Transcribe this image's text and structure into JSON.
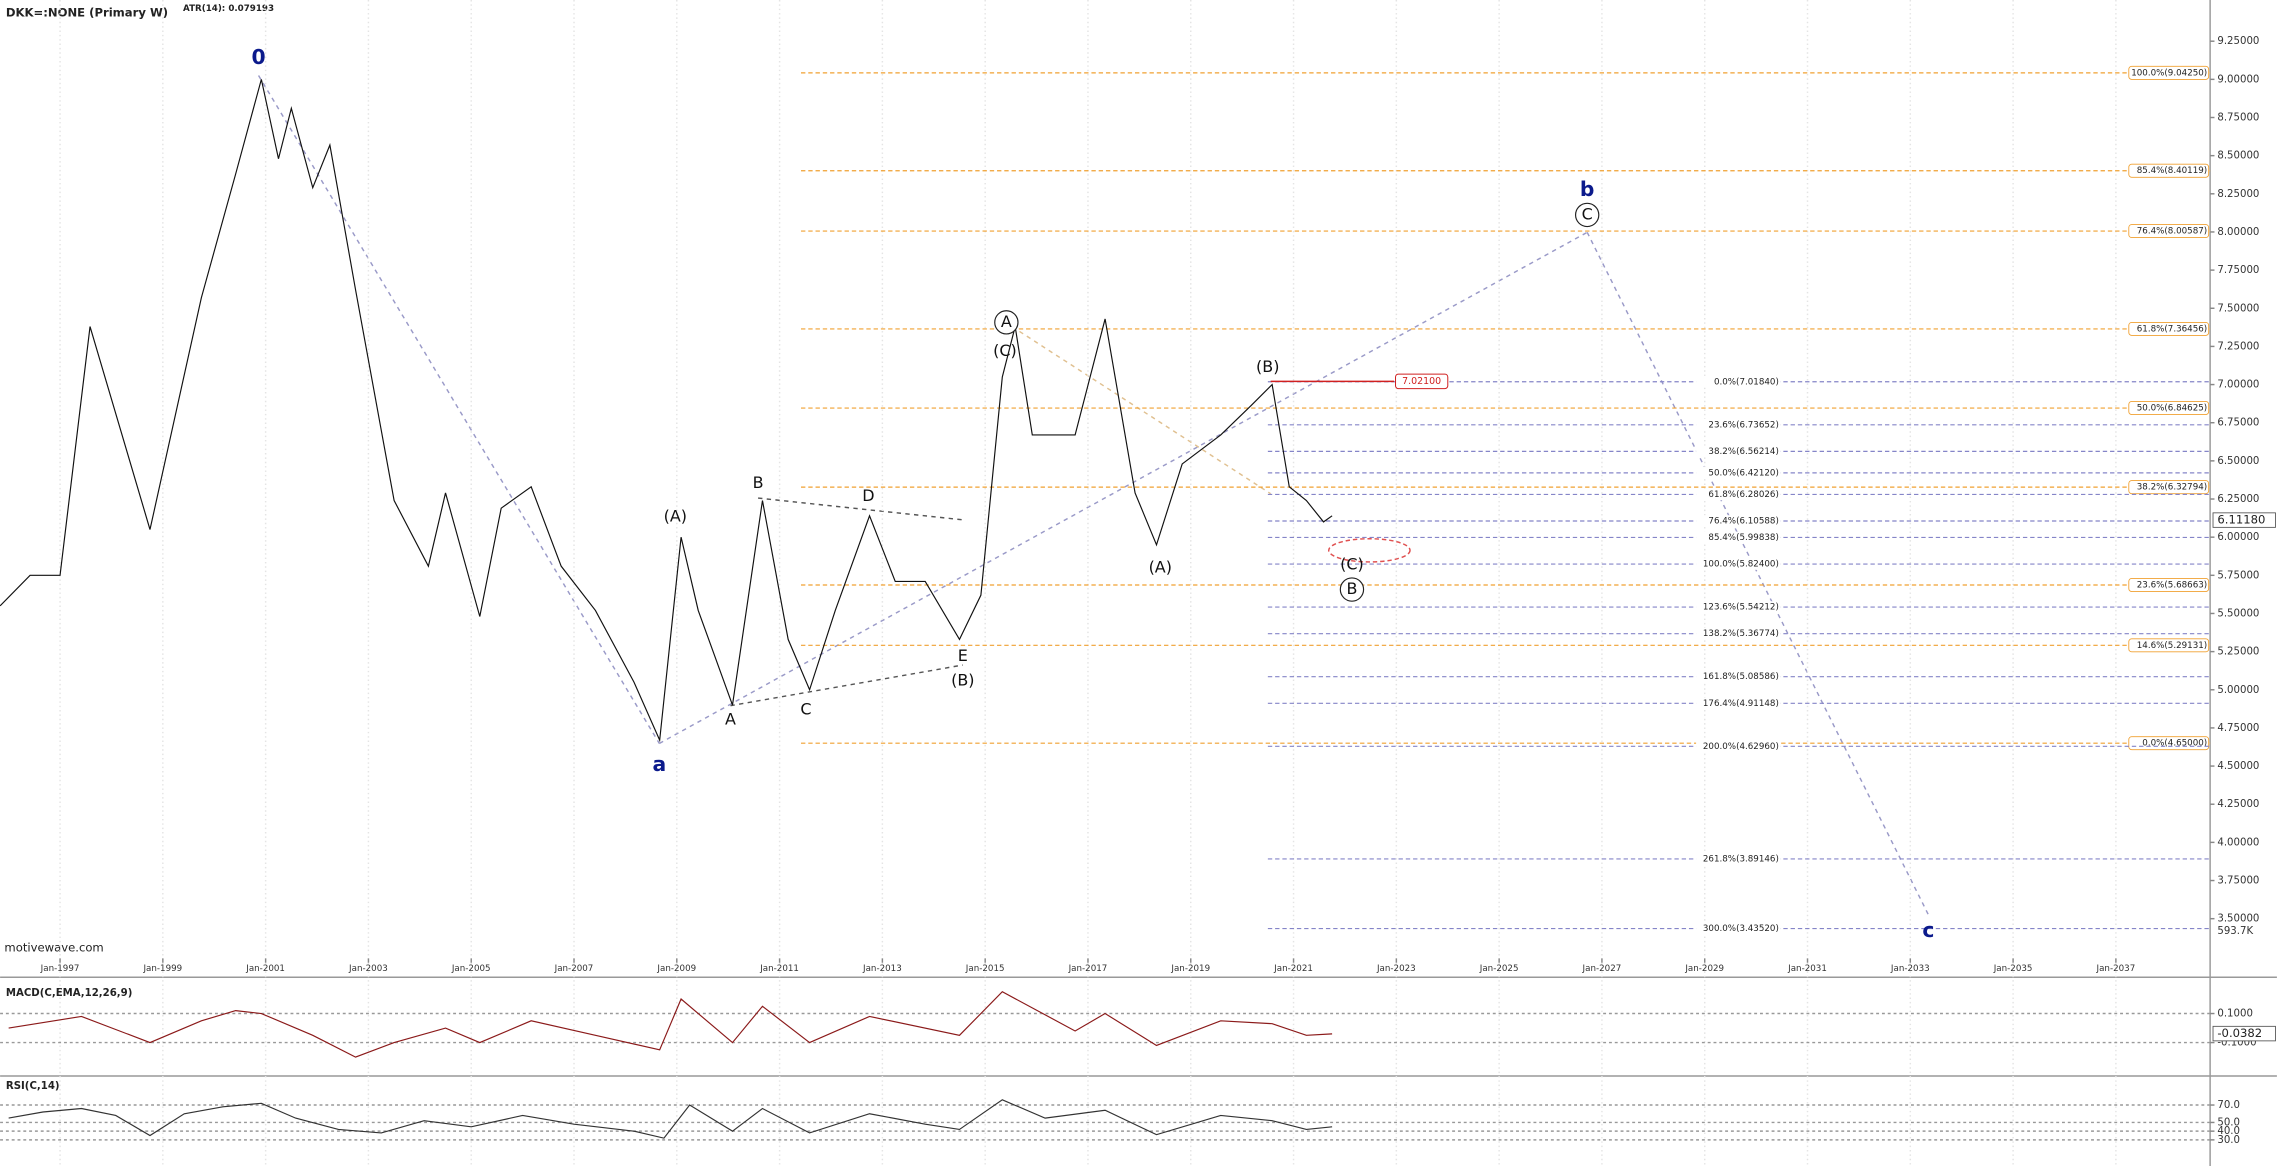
{
  "chart_data": [
    {
      "type": "line",
      "title": "DKK=:NONE (Primary W)",
      "subtitle": "ATR(14): 0.079193",
      "source": "motivewave.com",
      "xlim": [
        "1995-11",
        "2038-11"
      ],
      "ylim": [
        3.24,
        9.52
      ],
      "grid": true,
      "xticks": [
        {
          "value": "1997-01",
          "label": "Jan-1997"
        },
        {
          "value": "1999-01",
          "label": "Jan-1999"
        },
        {
          "value": "2001-01",
          "label": "Jan-2001"
        },
        {
          "value": "2003-01",
          "label": "Jan-2003"
        },
        {
          "value": "2005-01",
          "label": "Jan-2005"
        },
        {
          "value": "2007-01",
          "label": "Jan-2007"
        },
        {
          "value": "2009-01",
          "label": "Jan-2009"
        },
        {
          "value": "2011-01",
          "label": "Jan-2011"
        },
        {
          "value": "2013-01",
          "label": "Jan-2013"
        },
        {
          "value": "2015-01",
          "label": "Jan-2015"
        },
        {
          "value": "2017-01",
          "label": "Jan-2017"
        },
        {
          "value": "2019-01",
          "label": "Jan-2019"
        },
        {
          "value": "2021-01",
          "label": "Jan-2021"
        },
        {
          "value": "2023-01",
          "label": "Jan-2023"
        },
        {
          "value": "2025-01",
          "label": "Jan-2025"
        },
        {
          "value": "2027-01",
          "label": "Jan-2027"
        },
        {
          "value": "2029-01",
          "label": "Jan-2029"
        },
        {
          "value": "2031-01",
          "label": "Jan-2031"
        },
        {
          "value": "2033-01",
          "label": "Jan-2033"
        },
        {
          "value": "2035-01",
          "label": "Jan-2035"
        },
        {
          "value": "2037-01",
          "label": "Jan-2037"
        }
      ],
      "yticks": [
        {
          "value": 3.5,
          "label": "3.50000"
        },
        {
          "value": 3.75,
          "label": "3.75000"
        },
        {
          "value": 4,
          "label": "4.00000"
        },
        {
          "value": 4.25,
          "label": "4.25000"
        },
        {
          "value": 4.5,
          "label": "4.50000"
        },
        {
          "value": 4.75,
          "label": "4.75000"
        },
        {
          "value": 5,
          "label": "5.00000"
        },
        {
          "value": 5.25,
          "label": "5.25000"
        },
        {
          "value": 5.5,
          "label": "5.50000"
        },
        {
          "value": 5.75,
          "label": "5.75000"
        },
        {
          "value": 6,
          "label": "6.00000"
        },
        {
          "value": 6.25,
          "label": "6.25000"
        },
        {
          "value": 6.5,
          "label": "6.50000"
        },
        {
          "value": 6.75,
          "label": "6.75000"
        },
        {
          "value": 7,
          "label": "7.00000"
        },
        {
          "value": 7.25,
          "label": "7.25000"
        },
        {
          "value": 7.5,
          "label": "7.50000"
        },
        {
          "value": 7.75,
          "label": "7.75000"
        },
        {
          "value": 8,
          "label": "8.00000"
        },
        {
          "value": 8.25,
          "label": "8.25000"
        },
        {
          "value": 8.5,
          "label": "8.50000"
        },
        {
          "value": 8.75,
          "label": "8.75000"
        },
        {
          "value": 9,
          "label": "9.00000"
        },
        {
          "value": 9.25,
          "label": "9.25000"
        }
      ],
      "series": [
        {
          "color": "#111111",
          "x": [
            "1995-11",
            "1996-06",
            "1997-01",
            "1997-08",
            "1998-10",
            "1999-10",
            "2000-06",
            "2000-12",
            "2001-04",
            "2001-07",
            "2001-12",
            "2002-04",
            "2002-10",
            "2003-07",
            "2004-03",
            "2004-07",
            "2005-03",
            "2005-08",
            "2006-03",
            "2006-10",
            "2007-06",
            "2008-03",
            "2008-09",
            "2009-02",
            "2009-06",
            "2010-02",
            "2010-09",
            "2011-03",
            "2011-08",
            "2012-02",
            "2012-10",
            "2013-04",
            "2013-11",
            "2014-07",
            "2014-12",
            "2015-05",
            "2015-08",
            "2015-12",
            "2016-10",
            "2017-05",
            "2017-12",
            "2018-05",
            "2018-11",
            "2019-08",
            "2020-03",
            "2020-08",
            "2020-12",
            "2021-04",
            "2021-08",
            "2021-10"
          ],
          "values": [
            5.55,
            5.75,
            5.75,
            7.38,
            6.05,
            7.57,
            8.38,
            9.0,
            8.48,
            8.81,
            8.29,
            8.57,
            7.62,
            6.24,
            5.81,
            6.29,
            5.48,
            6.19,
            6.33,
            5.81,
            5.52,
            5.05,
            4.67,
            6.0,
            5.52,
            4.9,
            6.24,
            5.33,
            5.0,
            5.52,
            6.14,
            5.71,
            5.71,
            5.33,
            5.62,
            7.05,
            7.38,
            6.67,
            6.67,
            7.43,
            6.29,
            5.95,
            6.48,
            6.67,
            6.86,
            7.0,
            6.33,
            6.24,
            6.1,
            6.14
          ]
        }
      ],
      "last_value": {
        "value": 6.1118,
        "label": "6.11180"
      },
      "marker_value": {
        "value": 7.021,
        "label": "7.02100"
      },
      "volume_label": "593.7K",
      "fib_levels": [
        {
          "color": "#f0a030",
          "from": "2011-06",
          "levels": [
            {
              "value": 9.0425,
              "label": "100.0%(9.04250)"
            },
            {
              "value": 8.40119,
              "label": "85.4%(8.40119)"
            },
            {
              "value": 8.00587,
              "label": "76.4%(8.00587)"
            },
            {
              "value": 7.36456,
              "label": "61.8%(7.36456)"
            },
            {
              "value": 6.84625,
              "label": "50.0%(6.84625)"
            },
            {
              "value": 6.32794,
              "label": "38.2%(6.32794)"
            },
            {
              "value": 5.68663,
              "label": "23.6%(5.68663)"
            },
            {
              "value": 5.29131,
              "label": "14.6%(5.29131)"
            },
            {
              "value": 4.65,
              "label": "0.0%(4.65000)"
            }
          ]
        },
        {
          "color": "#8585c8",
          "from": "2020-07",
          "levels": [
            {
              "value": 7.0184,
              "label": "0.0%(7.01840)"
            },
            {
              "value": 6.73652,
              "label": "23.6%(6.73652)"
            },
            {
              "value": 6.56214,
              "label": "38.2%(6.56214)"
            },
            {
              "value": 6.4212,
              "label": "50.0%(6.42120)"
            },
            {
              "value": 6.28026,
              "label": "61.8%(6.28026)"
            },
            {
              "value": 6.10588,
              "label": "76.4%(6.10588)"
            },
            {
              "value": 5.99838,
              "label": "85.4%(5.99838)"
            },
            {
              "value": 5.824,
              "label": "100.0%(5.82400)"
            },
            {
              "value": 5.54212,
              "label": "123.6%(5.54212)"
            },
            {
              "value": 5.36774,
              "label": "138.2%(5.36774)"
            },
            {
              "value": 5.08586,
              "label": "161.8%(5.08586)"
            },
            {
              "value": 4.91148,
              "label": "176.4%(4.91148)"
            },
            {
              "value": 4.6296,
              "label": "200.0%(4.62960)"
            },
            {
              "value": 3.89146,
              "label": "261.8%(3.89146)"
            },
            {
              "value": 3.4352,
              "label": "300.0%(3.43520)"
            }
          ]
        }
      ],
      "annotations": [
        {
          "text": "0",
          "color": "#0b1a8c"
        },
        {
          "text": "a",
          "color": "#0b1a8c"
        },
        {
          "text": "b",
          "color": "#0b1a8c"
        },
        {
          "text": "c",
          "color": "#0b1a8c"
        },
        {
          "text": "(A)"
        },
        {
          "text": "B"
        },
        {
          "text": "D"
        },
        {
          "text": "A"
        },
        {
          "text": "C"
        },
        {
          "text": "E"
        },
        {
          "text": "(B)"
        },
        {
          "text": "(C)"
        },
        {
          "text": "A",
          "circled": true
        },
        {
          "text": "(B)"
        },
        {
          "text": "(A)"
        },
        {
          "text": "(C)"
        },
        {
          "text": "B",
          "circled": true
        },
        {
          "text": "C",
          "circled": true
        }
      ]
    },
    {
      "type": "line",
      "title": "MACD(C,EMA,12,26,9)",
      "xlim": [
        "1995-11",
        "2038-11"
      ],
      "ylim": [
        -0.32,
        0.32
      ],
      "yticks": [
        {
          "value": 0.1,
          "label": "0.1000"
        },
        {
          "value": -0.1,
          "label": "-0.1000"
        }
      ],
      "last_value": {
        "value": -0.0382,
        "label": "-0.0382"
      },
      "series": [
        {
          "color": "#8b1a1a",
          "x": [
            "1996-01",
            "1997-06",
            "1998-10",
            "1999-10",
            "2000-06",
            "2000-12",
            "2001-12",
            "2002-10",
            "2003-07",
            "2004-07",
            "2005-03",
            "2006-03",
            "2007-06",
            "2008-09",
            "2009-02",
            "2010-02",
            "2010-09",
            "2011-08",
            "2012-10",
            "2014-07",
            "2015-05",
            "2016-10",
            "2017-05",
            "2018-05",
            "2019-08",
            "2020-08",
            "2021-04",
            "2021-10"
          ],
          "values": [
            0.0,
            0.08,
            -0.1,
            0.05,
            0.12,
            0.1,
            -0.05,
            -0.2,
            -0.1,
            0.0,
            -0.1,
            0.05,
            -0.05,
            -0.15,
            0.2,
            -0.1,
            0.15,
            -0.1,
            0.08,
            -0.05,
            0.25,
            -0.02,
            0.1,
            -0.12,
            0.05,
            0.03,
            -0.05,
            -0.04
          ]
        }
      ]
    },
    {
      "type": "line",
      "title": "RSI(C,14)",
      "xlim": [
        "1995-11",
        "2038-11"
      ],
      "ylim": [
        5,
        101.7
      ],
      "yticks": [
        {
          "value": 70,
          "label": "70.0"
        },
        {
          "value": 50,
          "label": "50.0"
        },
        {
          "value": 40,
          "label": "40.0"
        },
        {
          "value": 30,
          "label": "30.0"
        }
      ],
      "series": [
        {
          "color": "#333333",
          "x": [
            "1996-01",
            "1996-09",
            "1997-06",
            "1998-02",
            "1998-10",
            "1999-06",
            "2000-03",
            "2000-12",
            "2001-08",
            "2002-06",
            "2003-04",
            "2004-02",
            "2005-01",
            "2006-01",
            "2007-01",
            "2008-03",
            "2008-10",
            "2009-04",
            "2010-02",
            "2010-09",
            "2011-08",
            "2012-10",
            "2013-11",
            "2014-07",
            "2015-05",
            "2016-03",
            "2017-05",
            "2018-05",
            "2019-08",
            "2020-08",
            "2021-04",
            "2021-10"
          ],
          "values": [
            55,
            62,
            66,
            58,
            35,
            60,
            68,
            72,
            55,
            42,
            38,
            52,
            45,
            58,
            48,
            40,
            32,
            70,
            40,
            66,
            38,
            60,
            48,
            42,
            76,
            55,
            64,
            36,
            58,
            52,
            42,
            45
          ]
        }
      ]
    }
  ]
}
